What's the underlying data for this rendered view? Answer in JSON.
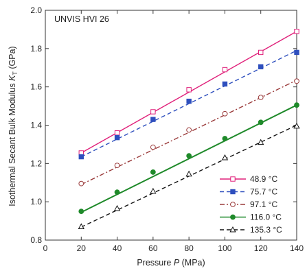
{
  "chart_data": {
    "type": "line",
    "annotation": "UNVIS HVI 26",
    "xlabel": {
      "prefix": "Pressure ",
      "var": "P",
      "unit": " (MPa)"
    },
    "ylabel": {
      "prefix": "Isothermal Secant Bulk Modulus  ",
      "var": "K",
      "sub": "T",
      "unit": " (GPa)"
    },
    "xlim": [
      0,
      140
    ],
    "ylim": [
      0.8,
      2.0
    ],
    "xticks": [
      0,
      20,
      40,
      60,
      80,
      100,
      120,
      140
    ],
    "yticks": [
      "0.8",
      "1.0",
      "1.2",
      "1.4",
      "1.6",
      "1.8",
      "2.0"
    ],
    "x": [
      20,
      40,
      60,
      80,
      100,
      120,
      140
    ],
    "grid": false,
    "legend_position": "bottom-right",
    "series": [
      {
        "name": "48.9 °C",
        "color": "#e0207a",
        "line": "solid",
        "marker": "open-square",
        "values": [
          1.255,
          1.36,
          1.47,
          1.585,
          1.69,
          1.78,
          1.89
        ],
        "fit": [
          1.255,
          1.89
        ]
      },
      {
        "name": "75.7 °C",
        "color": "#2e4fbe",
        "line": "dashed",
        "marker": "filled-square",
        "values": [
          1.235,
          1.335,
          1.43,
          1.525,
          1.615,
          1.705,
          1.78
        ],
        "fit": [
          1.235,
          1.79
        ]
      },
      {
        "name": "97.1 °C",
        "color": "#9a3a3a",
        "line": "dashdot",
        "marker": "open-circle",
        "values": [
          1.095,
          1.19,
          1.285,
          1.375,
          1.46,
          1.545,
          1.63
        ],
        "fit": [
          1.09,
          1.635
        ]
      },
      {
        "name": "116.0 °C",
        "color": "#1f8a2a",
        "line": "solid",
        "marker": "filled-circle",
        "values": [
          0.95,
          1.05,
          1.155,
          1.24,
          1.33,
          1.415,
          1.505
        ],
        "fit": [
          0.945,
          1.505
        ]
      },
      {
        "name": "135.3 °C",
        "color": "#111111",
        "line": "dashed",
        "marker": "open-triangle",
        "values": [
          0.87,
          0.965,
          1.055,
          1.145,
          1.23,
          1.31,
          1.395
        ],
        "fit": [
          0.868,
          1.4
        ]
      }
    ]
  }
}
